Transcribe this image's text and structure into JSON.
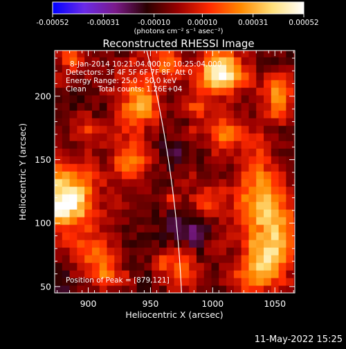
{
  "chart_data": {
    "type": "heatmap",
    "title": "Reconstructed RHESSI Image",
    "xlabel": "Heliocentric X (arcsec)",
    "ylabel": "Heliocentric Y (arcsec)",
    "xlim": [
      873,
      1066
    ],
    "ylim": [
      45,
      236
    ],
    "x_ticks": [
      900,
      950,
      1000,
      1050
    ],
    "y_ticks": [
      50,
      100,
      150,
      200
    ],
    "colorbar": {
      "min": -0.00052,
      "max": 0.00052,
      "tick_values": [
        -0.00052,
        -0.00031,
        -0.0001,
        0.0001,
        0.00031,
        0.00052
      ],
      "tick_labels": [
        "-0.00052",
        "-0.00031",
        "-0.00010",
        "0.00010",
        "0.00031",
        "0.00052"
      ],
      "unit_label": "(photons cm⁻² s⁻¹ asec⁻²)",
      "colors": [
        "#0000ff",
        "#6a2ae8",
        "#7a1a8a",
        "#2a0000",
        "#9a0000",
        "#ff2a00",
        "#ff8a00",
        "#ffe07a",
        "#ffffff"
      ]
    },
    "annotations": {
      "time_range": "8-Jan-2014 10:21:04.000 to 10:25:04.000",
      "detectors": "Detectors: 3F 4F 5F 6F 7F 8F, Att 0",
      "energy": "Energy Range: 25.0 - 50.0 keV",
      "clean": "Clean     Total counts: 1.26E+04",
      "peak": "Position of Peak = [879,121]"
    },
    "peak": [
      879,
      121
    ],
    "limb_arcsec": 976
  },
  "footer": {
    "timestamp": "11-May-2022 15:25"
  }
}
